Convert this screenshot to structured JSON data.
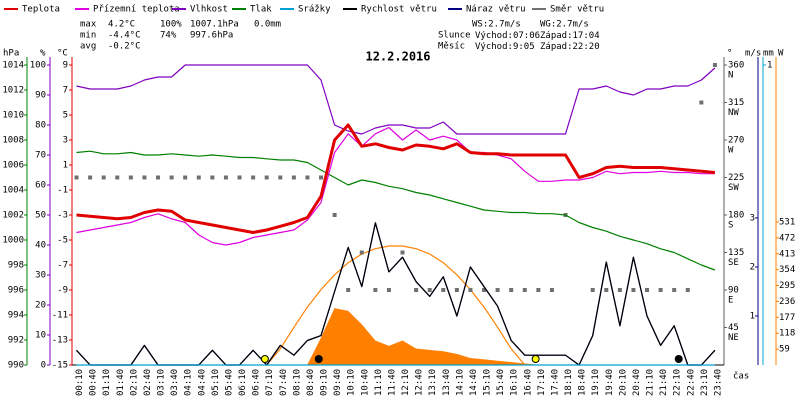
{
  "chart_data": {
    "type": "line",
    "title": "12.2.2016",
    "x_label": "čas",
    "categories": [
      "00:10",
      "00:40",
      "01:10",
      "01:40",
      "02:10",
      "02:40",
      "03:10",
      "03:40",
      "04:10",
      "04:40",
      "05:10",
      "05:40",
      "06:10",
      "06:40",
      "07:10",
      "07:40",
      "08:10",
      "08:40",
      "09:10",
      "09:40",
      "10:10",
      "10:40",
      "11:10",
      "11:40",
      "12:10",
      "12:40",
      "13:10",
      "13:40",
      "14:10",
      "14:40",
      "15:10",
      "15:40",
      "16:10",
      "16:40",
      "17:10",
      "17:40",
      "18:10",
      "18:40",
      "19:10",
      "19:40",
      "20:10",
      "20:40",
      "21:10",
      "21:40",
      "22:10",
      "22:40",
      "23:10",
      "23:40"
    ],
    "axes": {
      "pressure": {
        "label": "hPa",
        "lim": [
          990,
          1014
        ],
        "ticks": [
          1014,
          1012,
          1010,
          1008,
          1006,
          1004,
          1002,
          1000,
          998,
          996,
          994,
          992,
          990
        ],
        "color": "#008000"
      },
      "humidity": {
        "label": "%",
        "lim": [
          0,
          100
        ],
        "ticks": [
          100,
          90,
          80,
          70,
          60,
          50,
          40,
          30,
          20,
          10,
          0
        ],
        "color": "#8000c0"
      },
      "temp": {
        "label": "°C",
        "lim": [
          -15,
          9
        ],
        "ticks": [
          9,
          7,
          5,
          3,
          1,
          -1,
          -3,
          -5,
          -7,
          -9,
          -11,
          -13,
          -15
        ],
        "color": "#e00000"
      },
      "direction": {
        "label": "°",
        "lim": [
          0,
          360
        ],
        "ticks": [
          360,
          315,
          270,
          225,
          180,
          135,
          90,
          45
        ],
        "compass": [
          "N",
          "NW",
          "W",
          "SW",
          "S",
          "SE",
          "E",
          "NE"
        ],
        "color": "#606060"
      },
      "wind": {
        "label": "m/s",
        "lim": [
          0,
          6.12
        ],
        "ticks": [
          1,
          2,
          3
        ],
        "color": "#000080"
      },
      "precip": {
        "label": "mm",
        "lim": [
          0,
          1
        ],
        "ticks": [
          1
        ],
        "color": "#00a0d0"
      },
      "solar": {
        "label": "W",
        "lim": [
          0,
          1114
        ],
        "ticks": [
          59,
          118,
          177,
          236,
          295,
          354,
          413,
          472,
          531
        ],
        "color": "#ff8000"
      }
    },
    "series": [
      {
        "name": "Teplota",
        "color": "#e00000",
        "axis": "temp",
        "style": "thick",
        "values": [
          -3.0,
          -3.1,
          -3.2,
          -3.3,
          -3.2,
          -2.8,
          -2.6,
          -2.7,
          -3.4,
          -3.6,
          -3.8,
          -4.0,
          -4.2,
          -4.4,
          -4.2,
          -3.9,
          -3.6,
          -3.2,
          -1.5,
          3.0,
          4.2,
          2.5,
          2.7,
          2.4,
          2.2,
          2.6,
          2.5,
          2.3,
          2.7,
          2.0,
          1.9,
          1.9,
          1.8,
          1.8,
          1.8,
          1.8,
          1.8,
          0.0,
          0.3,
          0.8,
          0.9,
          0.8,
          0.8,
          0.8,
          0.7,
          0.6,
          0.5,
          0.4
        ]
      },
      {
        "name": "Přízemní teplota",
        "color": "#e000e0",
        "axis": "temp",
        "values": [
          -4.4,
          -4.2,
          -4.0,
          -3.8,
          -3.6,
          -3.2,
          -2.9,
          -3.3,
          -3.6,
          -4.6,
          -5.2,
          -5.4,
          -5.2,
          -4.8,
          -4.6,
          -4.4,
          -4.2,
          -3.4,
          -2.0,
          2.0,
          3.5,
          2.5,
          3.5,
          4.0,
          3.0,
          3.8,
          3.0,
          3.3,
          3.0,
          2.0,
          2.0,
          1.8,
          1.5,
          0.5,
          -0.3,
          -0.3,
          -0.2,
          -0.2,
          0.0,
          0.5,
          0.3,
          0.4,
          0.4,
          0.5,
          0.4,
          0.4,
          0.3,
          0.3
        ]
      },
      {
        "name": "Vlhkost",
        "color": "#8000c0",
        "axis": "humidity",
        "values": [
          93,
          92,
          92,
          92,
          93,
          95,
          96,
          96,
          100,
          100,
          100,
          100,
          100,
          100,
          100,
          100,
          100,
          100,
          95,
          80,
          78,
          77,
          79,
          80,
          80,
          79,
          79,
          81,
          77,
          77,
          77,
          77,
          77,
          77,
          77,
          77,
          77,
          92,
          92,
          93,
          91,
          90,
          92,
          92,
          93,
          93,
          95,
          99
        ]
      },
      {
        "name": "Tlak",
        "color": "#008000",
        "axis": "pressure",
        "values": [
          1007.0,
          1007.1,
          1006.9,
          1006.9,
          1007.0,
          1006.8,
          1006.8,
          1006.9,
          1006.8,
          1006.7,
          1006.8,
          1006.7,
          1006.6,
          1006.6,
          1006.5,
          1006.4,
          1006.4,
          1006.2,
          1005.6,
          1005.0,
          1004.4,
          1004.8,
          1004.6,
          1004.3,
          1004.1,
          1003.8,
          1003.6,
          1003.3,
          1003.0,
          1002.7,
          1002.4,
          1002.3,
          1002.2,
          1002.2,
          1002.1,
          1002.1,
          1002.0,
          1001.4,
          1001.0,
          1000.7,
          1000.3,
          1000.0,
          999.7,
          999.3,
          999.0,
          998.5,
          998.0,
          997.6
        ]
      },
      {
        "name": "Srážky",
        "color": "#00a0d0",
        "axis": "precip",
        "values": [
          0,
          0,
          0,
          0,
          0,
          0,
          0,
          0,
          0,
          0,
          0,
          0,
          0,
          0,
          0,
          0,
          0,
          0,
          0,
          0,
          0,
          0,
          0,
          0,
          0,
          0,
          0,
          0,
          0,
          0,
          0,
          0,
          0,
          0,
          0,
          0,
          0,
          0,
          0,
          0,
          0,
          0,
          0,
          0,
          0,
          0,
          0,
          0
        ]
      },
      {
        "name": "Rychlost větru",
        "color": "#000000",
        "axis": "wind",
        "values": [
          0.3,
          0,
          0,
          0,
          0,
          0.4,
          0,
          0,
          0,
          0,
          0.3,
          0,
          0,
          0.3,
          0,
          0.4,
          0.2,
          0.5,
          0.6,
          1.5,
          2.4,
          1.6,
          2.9,
          1.9,
          2.2,
          1.7,
          1.4,
          1.8,
          1.0,
          2.0,
          1.6,
          1.2,
          0.5,
          0.2,
          0.2,
          0.2,
          0.2,
          0,
          0.6,
          2.1,
          0.8,
          2.2,
          1.0,
          0.4,
          0.8,
          0,
          0,
          0.3
        ]
      },
      {
        "name": "Náraz větru",
        "color": "#000080",
        "axis": "wind",
        "values": [
          0.3,
          0,
          0,
          0,
          0,
          0.4,
          0,
          0,
          0,
          0,
          0.3,
          0,
          0,
          0.3,
          0,
          0.4,
          0.2,
          0.5,
          0.6,
          1.5,
          2.4,
          1.6,
          2.9,
          1.9,
          2.2,
          1.7,
          1.4,
          1.8,
          1.0,
          2.0,
          1.6,
          1.2,
          0.5,
          0.2,
          0.2,
          0.2,
          0.2,
          0,
          0.6,
          2.1,
          0.8,
          2.2,
          1.0,
          0.4,
          0.8,
          0,
          0,
          0.3
        ]
      },
      {
        "name": "Směr větru",
        "color": "#707070",
        "axis": "direction",
        "style": "dots",
        "values": [
          225,
          225,
          225,
          225,
          225,
          225,
          225,
          225,
          225,
          225,
          225,
          225,
          225,
          225,
          225,
          225,
          225,
          225,
          225,
          180,
          90,
          135,
          90,
          90,
          135,
          90,
          90,
          90,
          90,
          90,
          90,
          90,
          90,
          90,
          90,
          90,
          180,
          null,
          90,
          90,
          90,
          90,
          90,
          90,
          90,
          90,
          315,
          360
        ]
      },
      {
        "color": "#ff8000",
        "axis": "solar",
        "style": "area",
        "values": [
          0,
          0,
          0,
          0,
          0,
          0,
          0,
          0,
          0,
          0,
          0,
          0,
          0,
          0,
          0,
          0,
          0,
          0,
          100,
          210,
          200,
          150,
          90,
          70,
          90,
          60,
          55,
          50,
          40,
          25,
          20,
          15,
          10,
          5,
          0,
          0,
          0,
          0,
          0,
          0,
          0,
          0,
          0,
          0,
          0,
          0,
          0,
          0
        ]
      },
      {
        "color": "#ff8000",
        "axis": "solar",
        "values": [
          null,
          null,
          null,
          null,
          null,
          null,
          null,
          null,
          null,
          null,
          null,
          null,
          null,
          null,
          0,
          60,
          140,
          215,
          280,
          335,
          380,
          412,
          432,
          442,
          442,
          432,
          412,
          380,
          335,
          280,
          215,
          140,
          60,
          0,
          null,
          null,
          null,
          null,
          null,
          null,
          null,
          null,
          null,
          null,
          null,
          null,
          null,
          null
        ]
      }
    ],
    "stats": [
      {
        "label": "max",
        "values": [
          "4.2°C",
          "100%",
          "1007.1hPa",
          "0.0mm"
        ]
      },
      {
        "label": "min",
        "values": [
          "-4.4°C",
          "74%",
          "997.6hPa"
        ]
      },
      {
        "label": "avg",
        "values": [
          "-0.2°C"
        ]
      }
    ],
    "wind_stats": [
      "WS:2.7m/s",
      "WG:2.7m/s"
    ],
    "sun": {
      "label": "Slunce",
      "rise_label": "Východ:",
      "rise": "07:06",
      "set_label": "Západ:",
      "set": "17:04"
    },
    "moon": {
      "label": "Měsíc",
      "rise_label": "Východ:",
      "rise": "9:05",
      "set_label": "Západ:",
      "set": "22:20"
    }
  }
}
